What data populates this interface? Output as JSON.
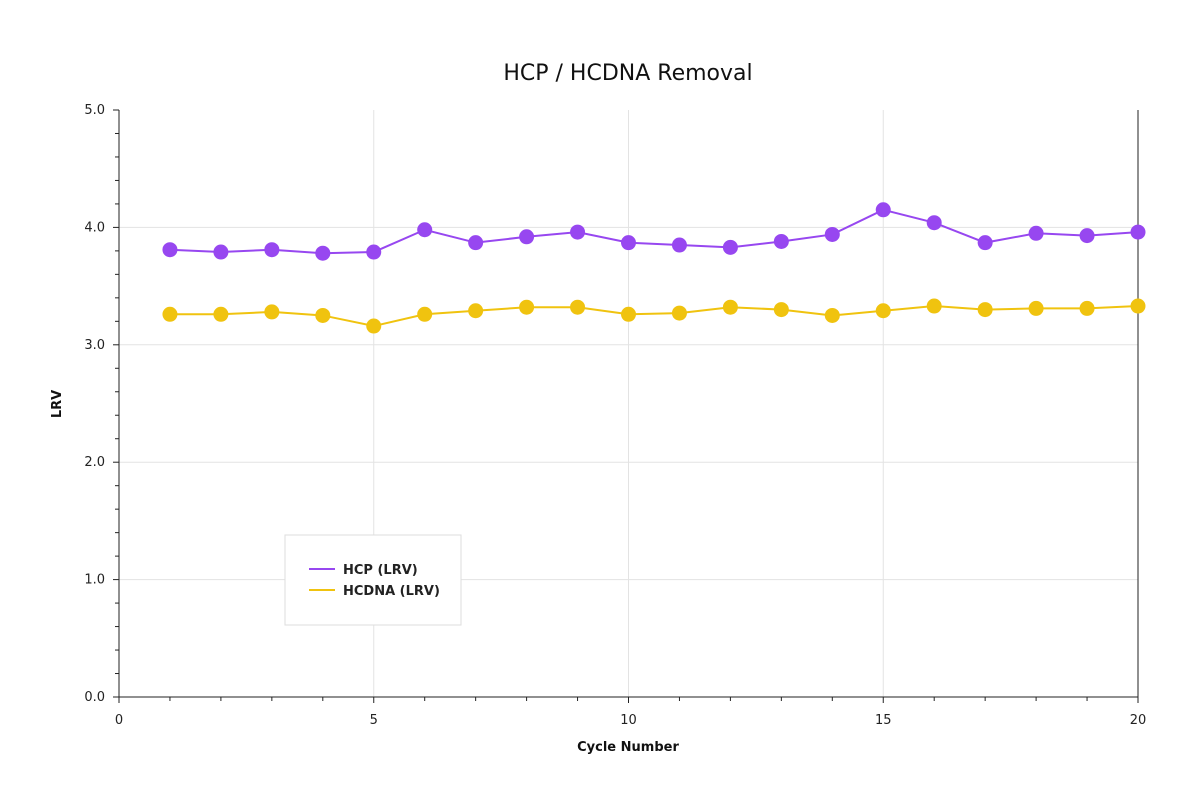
{
  "chart_data": {
    "type": "line",
    "title": "HCP / HCDNA Removal",
    "xlabel": "Cycle Number",
    "ylabel": "LRV",
    "xlim": [
      0,
      20
    ],
    "ylim": [
      0,
      5
    ],
    "x_ticks": [
      0,
      5,
      10,
      15,
      20
    ],
    "y_ticks": [
      "0.0",
      "1.0",
      "2.0",
      "3.0",
      "4.0",
      "5.0"
    ],
    "grid": true,
    "legend_position": "lower-left",
    "x": [
      1,
      2,
      3,
      4,
      5,
      6,
      7,
      8,
      9,
      10,
      11,
      12,
      13,
      14,
      15,
      16,
      17,
      18,
      19,
      20
    ],
    "series": [
      {
        "name": "HCP (LRV)",
        "color": "#9747f0",
        "values": [
          3.81,
          3.79,
          3.81,
          3.78,
          3.79,
          3.98,
          3.87,
          3.92,
          3.96,
          3.87,
          3.85,
          3.83,
          3.88,
          3.94,
          4.15,
          4.04,
          3.87,
          3.95,
          3.93,
          3.96
        ]
      },
      {
        "name": "HCDNA (LRV)",
        "color": "#f0c30f",
        "values": [
          3.26,
          3.26,
          3.28,
          3.25,
          3.16,
          3.26,
          3.29,
          3.32,
          3.32,
          3.26,
          3.27,
          3.32,
          3.3,
          3.25,
          3.29,
          3.33,
          3.3,
          3.31,
          3.31,
          3.33
        ]
      }
    ]
  }
}
